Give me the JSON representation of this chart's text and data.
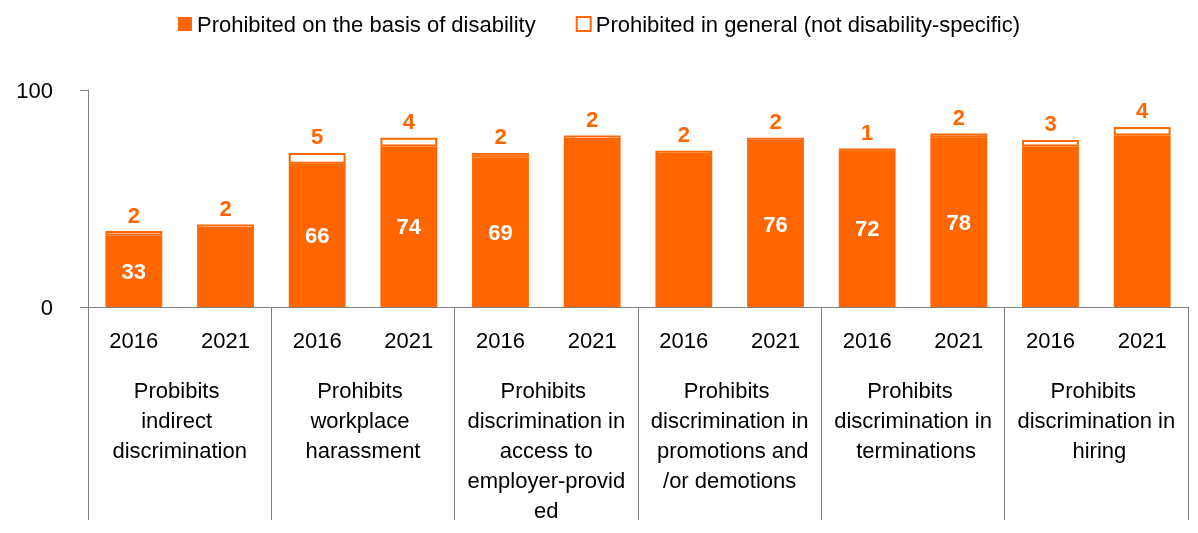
{
  "chart_data": {
    "type": "bar",
    "stacked": true,
    "categories": [
      "2016",
      "2021",
      "2016",
      "2021",
      "2016",
      "2021",
      "2016",
      "2021",
      "2016",
      "2021",
      "2016",
      "2021"
    ],
    "annotations": [
      "Probibits indirect discrimination",
      "Prohibits workplace harassment",
      "Prohibits discrimination in access to employer-provided",
      "Prohibits discrimination in promotions and/or demotions",
      "Prohibits discrimination in terminations",
      "Prohibits discrimination in hiring"
    ],
    "series": [
      {
        "name": "Prohibited on the basis of disability",
        "color": "#ff6600",
        "values": [
          33,
          36,
          66,
          74,
          69,
          77,
          70,
          76,
          72,
          78,
          74,
          79
        ],
        "value_labels": [
          "33",
          null,
          "66",
          "74",
          "69",
          null,
          null,
          "76",
          "72",
          "78",
          null,
          null
        ]
      },
      {
        "name": "Prohibited in general (not disability-specific)",
        "color": "#ffffff",
        "values": [
          2,
          2,
          5,
          4,
          2,
          2,
          2,
          2,
          1,
          2,
          3,
          4
        ],
        "value_labels": [
          "2",
          "2",
          "5",
          "4",
          "2",
          "2",
          "2",
          "2",
          "1",
          "2",
          "3",
          "4"
        ]
      }
    ],
    "ylim": [
      0,
      100
    ],
    "yticks": [
      0,
      100
    ],
    "grid": false,
    "legend": "top"
  }
}
